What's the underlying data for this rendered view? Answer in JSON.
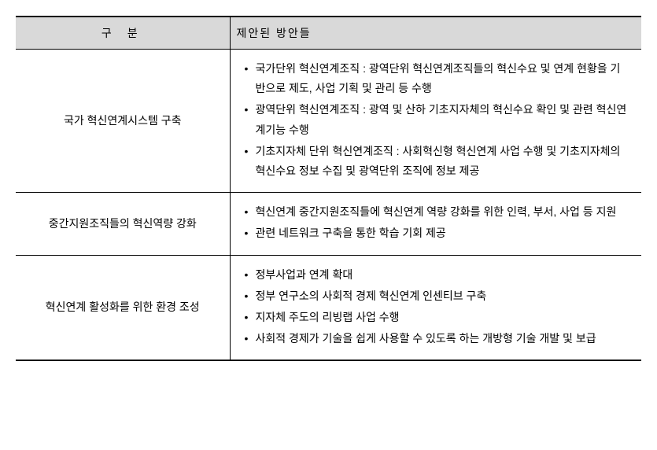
{
  "table": {
    "columns": {
      "col1_header": "구 분",
      "col2_header": "제안된 방안들"
    },
    "rows": [
      {
        "category": "국가 혁신연계시스템 구축",
        "items": [
          "국가단위 혁신연계조직 : 광역단위 혁신연계조직들의 혁신수요 및 연계 현황을 기반으로 제도, 사업 기획 및 관리 등 수행",
          "광역단위 혁신연계조직 : 광역 및 산하 기초지자체의 혁신수요 확인 및 관련 혁신연계기능 수행",
          "기초지자체 단위 혁신연계조직 : 사회혁신형 혁신연계 사업 수행 및 기초지자체의 혁신수요 정보 수집 및 광역단위 조직에 정보 제공"
        ]
      },
      {
        "category": "중간지원조직들의 혁신역량 강화",
        "items": [
          "혁신연계 중간지원조직들에 혁신연계 역량 강화를 위한 인력, 부서, 사업 등 지원",
          "관련 네트워크 구축을 통한 학습 기회 제공"
        ]
      },
      {
        "category": "혁신연계 활성화를 위한 환경 조성",
        "items": [
          "정부사업과 연계 확대",
          "정부 연구소의 사회적 경제 혁신연계 인센티브 구축",
          "지자체 주도의 리빙랩 사업 수행",
          "사회적 경제가 기술을 쉽게 사용할 수 있도록 하는  개방형 기술 개발 및 보급"
        ]
      }
    ],
    "styling": {
      "header_bg": "#d9d9d9",
      "border_color": "#000000",
      "font_size": 14,
      "line_height": 1.8,
      "col1_width": 272,
      "col2_width": 523,
      "total_width": 795
    }
  }
}
